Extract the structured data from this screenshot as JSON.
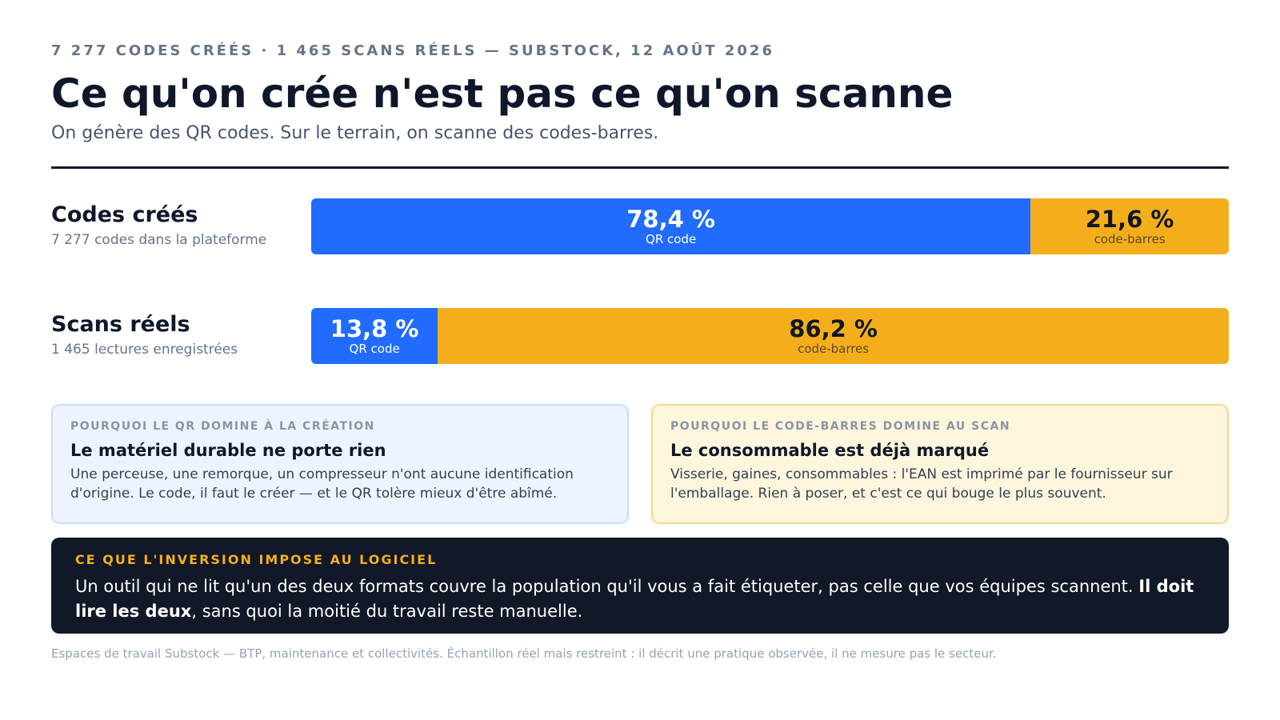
{
  "header": {
    "eyebrow": "7 277 CODES CRÉÉS · 1 465 SCANS RÉELS — SUBSTOCK, 12 AOÛT 2026",
    "title": "Ce qu'on crée n'est pas ce qu'on scanne",
    "subtitle": "On génère des QR codes. Sur le terrain, on scanne des codes-barres."
  },
  "colors": {
    "qr": "#216cff",
    "barcode": "#f5ae1b",
    "card_left_bg": "#edf4ff",
    "card_left_border": "#c7dcff",
    "card_right_bg": "#fdf5dc",
    "card_right_border": "#f4d98c",
    "callout_bg": "#111827",
    "callout_kicker": "#f5ae1b"
  },
  "chart_data": {
    "type": "bar",
    "stacked": true,
    "orientation": "horizontal",
    "normalized_percent": true,
    "categories": [
      "Codes créés",
      "Scans réels"
    ],
    "category_subtitles": [
      "7 277 codes dans la plateforme",
      "1 465 lectures enregistrées"
    ],
    "series": [
      {
        "name": "QR code",
        "values": [
          78.4,
          13.8
        ],
        "labels": [
          "78,4 %",
          "13,8 %"
        ]
      },
      {
        "name": "code-barres",
        "values": [
          21.6,
          86.2
        ],
        "labels": [
          "21,6 %",
          "86,2 %"
        ]
      }
    ],
    "xlim": [
      0,
      100
    ],
    "grid": false,
    "legend": "none"
  },
  "cards": {
    "left": {
      "kicker": "POURQUOI LE QR DOMINE À LA CRÉATION",
      "title": "Le matériel durable ne porte rien",
      "body": "Une perceuse, une remorque, un compresseur n'ont aucune identification d'origine. Le code, il faut le créer — et le QR tolère mieux d'être abîmé."
    },
    "right": {
      "kicker": "POURQUOI LE CODE-BARRES DOMINE AU SCAN",
      "title": "Le consommable est déjà marqué",
      "body": "Visserie, gaines, consommables : l'EAN est imprimé par le fournisseur sur l'emballage. Rien à poser, et c'est ce qui bouge le plus souvent."
    }
  },
  "callout": {
    "kicker": "CE QUE L'INVERSION IMPOSE AU LOGICIEL",
    "body_start": "Un outil qui ne lit qu'un des deux formats couvre la population qu'il vous a fait étiqueter, pas celle que vos équipes scannent.",
    "body_bold": "Il doit lire les deux",
    "body_end": ", sans quoi la moitié du travail reste manuelle."
  },
  "footnote": "Espaces de travail Substock — BTP, maintenance et collectivités. Échantillon réel mais restreint : il décrit une pratique observée, il ne mesure pas le secteur."
}
